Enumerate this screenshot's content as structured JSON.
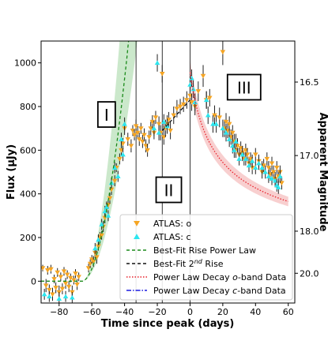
{
  "chart_data": {
    "type": "scatter",
    "xlabel": "Time since peak (days)",
    "ylabel": "Flux (μJy)",
    "y2label": "Apparent Magnitude",
    "xlim": [
      -91,
      64
    ],
    "ylim": [
      -100,
      1100
    ],
    "x_ticks": [
      -80,
      -60,
      -40,
      -20,
      0,
      20,
      40,
      60
    ],
    "x_tick_labels": [
      "−80",
      "−60",
      "−40",
      "−20",
      "0",
      "20",
      "40",
      "60"
    ],
    "y_ticks": [
      0,
      200,
      400,
      600,
      800,
      1000
    ],
    "y_tick_labels": [
      "0",
      "200",
      "400",
      "600",
      "800",
      "1000"
    ],
    "mag_zeropoint": 23.9,
    "mag_ticks": [
      16.5,
      17.0,
      18.0,
      20.0
    ],
    "mag_tick_labels": [
      "16.5",
      "17.0",
      "18.0",
      "20.0"
    ],
    "vlines_x": [
      -33,
      -17,
      0
    ],
    "phase_labels": [
      {
        "text": "I",
        "x": -51,
        "y": 760
      },
      {
        "text": "II",
        "x": -13,
        "y": 415
      },
      {
        "text": "III",
        "x": 33,
        "y": 885
      }
    ],
    "legend": {
      "placement": "lower-right",
      "entries": [
        {
          "label": "ATLAS: o",
          "kind": "tri-down",
          "color": "#F5A524"
        },
        {
          "label": "ATLAS: c",
          "kind": "tri-up",
          "color": "#2CE6EF"
        },
        {
          "label": "Best-Fit Rise Power Law",
          "kind": "line",
          "color": "#1A8A1A",
          "dash": "4,3"
        },
        {
          "label": "Best-Fit 2",
          "sup": "nd",
          "label_tail": " Rise",
          "kind": "line",
          "color": "#111111",
          "dash": "4,3"
        },
        {
          "label": "Power Law Decay ",
          "italic": "o",
          "label_tail": "-band Data",
          "kind": "line",
          "color": "#E8202A",
          "dash": "1.5,2"
        },
        {
          "label": "Power Law Decay ",
          "italic": "c",
          "label_tail": "-band Data",
          "kind": "line",
          "color": "#1A1AE0",
          "dash": "6,2,1.5,2"
        }
      ]
    },
    "series": [
      {
        "name": "ATLAS: o",
        "marker": "tri-down",
        "color": "#F5A524",
        "points": [
          [
            -90,
            60,
            15
          ],
          [
            -88,
            -20,
            30
          ],
          [
            -87,
            50,
            20
          ],
          [
            -86,
            -40,
            25
          ],
          [
            -85,
            55,
            20
          ],
          [
            -84,
            -60,
            30
          ],
          [
            -83,
            10,
            20
          ],
          [
            -82,
            -30,
            25
          ],
          [
            -81,
            40,
            20
          ],
          [
            -80,
            -50,
            30
          ],
          [
            -79,
            20,
            20
          ],
          [
            -78,
            -35,
            25
          ],
          [
            -77,
            45,
            20
          ],
          [
            -76,
            -10,
            25
          ],
          [
            -75,
            30,
            20
          ],
          [
            -74,
            -25,
            25
          ],
          [
            -73,
            15,
            20
          ],
          [
            -72,
            -50,
            30
          ],
          [
            -71,
            5,
            20
          ],
          [
            -70,
            35,
            20
          ],
          [
            -69,
            -15,
            25
          ],
          [
            -68,
            20,
            20
          ],
          [
            -62,
            60,
            20
          ],
          [
            -61,
            80,
            20
          ],
          [
            -60,
            100,
            20
          ],
          [
            -59,
            90,
            25
          ],
          [
            -58,
            130,
            25
          ],
          [
            -57,
            110,
            30
          ],
          [
            -56,
            160,
            20
          ],
          [
            -55,
            200,
            25
          ],
          [
            -54,
            210,
            20
          ],
          [
            -53,
            250,
            25
          ],
          [
            -52,
            290,
            25
          ],
          [
            -50,
            350,
            20
          ],
          [
            -49,
            380,
            25
          ],
          [
            -48,
            420,
            25
          ],
          [
            -46,
            460,
            25
          ],
          [
            -45,
            520,
            20
          ],
          [
            -43,
            560,
            25
          ],
          [
            -42,
            600,
            25
          ],
          [
            -41,
            630,
            25
          ],
          [
            -40,
            700,
            30
          ],
          [
            -38,
            650,
            30
          ],
          [
            -36,
            620,
            30
          ],
          [
            -35,
            690,
            25
          ],
          [
            -34,
            670,
            25
          ],
          [
            -33,
            710,
            30
          ],
          [
            -32,
            680,
            30
          ],
          [
            -31,
            650,
            30
          ],
          [
            -30,
            700,
            25
          ],
          [
            -29,
            640,
            30
          ],
          [
            -28,
            670,
            30
          ],
          [
            -27,
            620,
            30
          ],
          [
            -26,
            600,
            30
          ],
          [
            -25,
            660,
            30
          ],
          [
            -24,
            700,
            30
          ],
          [
            -23,
            730,
            30
          ],
          [
            -22,
            680,
            30
          ],
          [
            -21,
            750,
            30
          ],
          [
            -19,
            720,
            35
          ],
          [
            -18,
            680,
            35
          ],
          [
            -17,
            950,
            40
          ],
          [
            -16,
            660,
            35
          ],
          [
            -15,
            700,
            40
          ],
          [
            -14,
            720,
            40
          ],
          [
            -13,
            740,
            35
          ],
          [
            -12,
            690,
            40
          ],
          [
            -10,
            760,
            40
          ],
          [
            -8,
            790,
            40
          ],
          [
            -6,
            800,
            35
          ],
          [
            -4,
            810,
            35
          ],
          [
            -2,
            830,
            40
          ],
          [
            0,
            850,
            40
          ],
          [
            1,
            820,
            40
          ],
          [
            3,
            800,
            40
          ],
          [
            5,
            870,
            45
          ],
          [
            8,
            940,
            50
          ],
          [
            10,
            830,
            40
          ],
          [
            12,
            840,
            40
          ],
          [
            15,
            760,
            45
          ],
          [
            18,
            750,
            45
          ],
          [
            20,
            1050,
            60
          ],
          [
            21,
            700,
            40
          ],
          [
            22,
            730,
            40
          ],
          [
            23,
            690,
            35
          ],
          [
            24,
            720,
            35
          ],
          [
            25,
            660,
            35
          ],
          [
            26,
            680,
            35
          ],
          [
            27,
            640,
            35
          ],
          [
            28,
            600,
            35
          ],
          [
            29,
            620,
            35
          ],
          [
            30,
            580,
            30
          ],
          [
            31,
            610,
            30
          ],
          [
            32,
            590,
            30
          ],
          [
            33,
            560,
            30
          ],
          [
            34,
            600,
            30
          ],
          [
            35,
            580,
            30
          ],
          [
            36,
            540,
            30
          ],
          [
            37,
            560,
            30
          ],
          [
            38,
            520,
            30
          ],
          [
            40,
            580,
            30
          ],
          [
            42,
            550,
            30
          ],
          [
            44,
            500,
            30
          ],
          [
            45,
            530,
            30
          ],
          [
            47,
            560,
            30
          ],
          [
            48,
            520,
            30
          ],
          [
            49,
            490,
            30
          ],
          [
            50,
            540,
            30
          ],
          [
            51,
            500,
            30
          ],
          [
            52,
            470,
            30
          ],
          [
            53,
            520,
            30
          ],
          [
            54,
            480,
            30
          ],
          [
            55,
            500,
            30
          ],
          [
            56,
            450,
            30
          ]
        ]
      },
      {
        "name": "ATLAS: c",
        "marker": "tri-up",
        "color": "#2CE6EF",
        "points": [
          [
            -89,
            -60,
            25
          ],
          [
            -86,
            -70,
            25
          ],
          [
            -80,
            -80,
            30
          ],
          [
            -76,
            -70,
            25
          ],
          [
            -72,
            -75,
            25
          ],
          [
            -58,
            150,
            25
          ],
          [
            -56,
            190,
            25
          ],
          [
            -54,
            260,
            25
          ],
          [
            -52,
            320,
            25
          ],
          [
            -51,
            340,
            25
          ],
          [
            -50,
            300,
            25
          ],
          [
            -48,
            450,
            25
          ],
          [
            -46,
            520,
            25
          ],
          [
            -44,
            480,
            25
          ],
          [
            -42,
            650,
            30
          ],
          [
            -41,
            580,
            30
          ],
          [
            -40,
            720,
            30
          ],
          [
            -22,
            700,
            35
          ],
          [
            -20,
            1000,
            40
          ],
          [
            -19,
            680,
            35
          ],
          [
            -16,
            730,
            35
          ],
          [
            -14,
            710,
            35
          ],
          [
            0,
            900,
            40
          ],
          [
            1,
            930,
            40
          ],
          [
            2,
            880,
            40
          ],
          [
            3,
            820,
            40
          ],
          [
            10,
            830,
            40
          ],
          [
            11,
            760,
            40
          ],
          [
            14,
            720,
            40
          ],
          [
            16,
            720,
            40
          ],
          [
            20,
            700,
            40
          ],
          [
            22,
            680,
            40
          ],
          [
            24,
            650,
            35
          ],
          [
            26,
            620,
            35
          ],
          [
            27,
            600,
            35
          ],
          [
            28,
            640,
            35
          ],
          [
            30,
            560,
            30
          ],
          [
            32,
            580,
            30
          ],
          [
            34,
            560,
            30
          ],
          [
            36,
            530,
            30
          ],
          [
            38,
            550,
            30
          ],
          [
            40,
            520,
            30
          ],
          [
            42,
            540,
            30
          ],
          [
            44,
            520,
            30
          ],
          [
            46,
            500,
            30
          ],
          [
            48,
            480,
            30
          ],
          [
            50,
            470,
            30
          ],
          [
            52,
            460,
            30
          ],
          [
            53,
            440,
            30
          ],
          [
            54,
            430,
            30
          ],
          [
            55,
            480,
            30
          ]
        ]
      }
    ],
    "models": {
      "rise": {
        "name": "Best-Fit Rise Power Law",
        "color": "#1A8A1A",
        "t0": -66,
        "A": 1.9,
        "n": 1.9,
        "x_max": -17,
        "band_color": "#8CCB8C"
      },
      "second_rise": {
        "name": "Best-Fit 2nd Rise",
        "color": "#111111",
        "from": [
          -17,
          690
        ],
        "to": [
          0,
          830
        ]
      },
      "decay_o": {
        "name": "Power Law Decay o-band Data",
        "color": "#E8202A",
        "A": 865,
        "t0": -8,
        "n": 0.45,
        "x_min": 0,
        "x_max": 60,
        "band_color": "#F2A0A0"
      },
      "decay_c": {
        "name": "Power Law Decay c-band Data",
        "color": "#1A1AE0",
        "A": 1290,
        "t0": -4,
        "n": 0.6,
        "x_min": -7,
        "x_max": 60,
        "band_color": "#9A7BE0"
      }
    }
  }
}
